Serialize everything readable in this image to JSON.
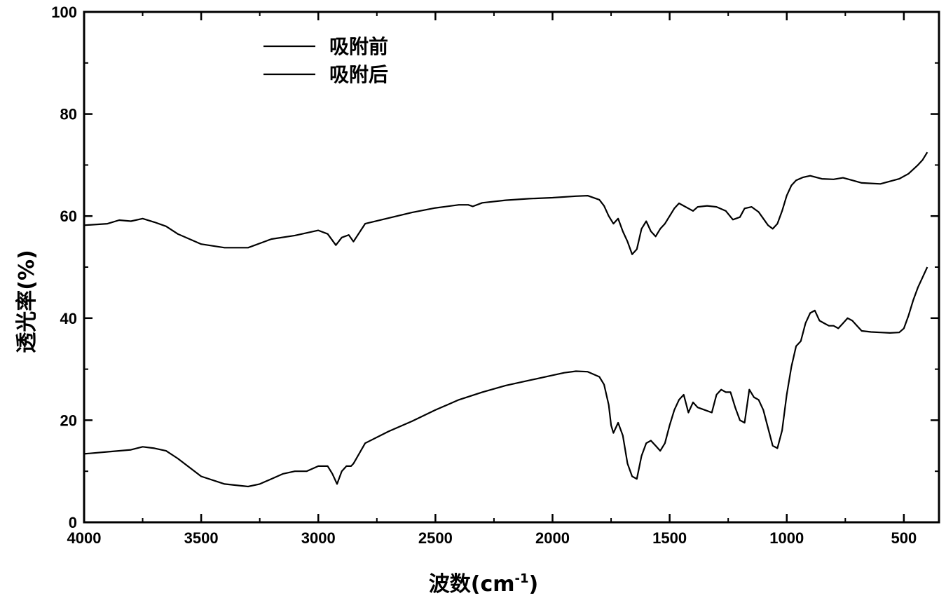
{
  "chart_data": {
    "type": "line",
    "xlabel": "波数(cm-1)",
    "xlabel_main": "波数(cm",
    "xlabel_sup": "-1",
    "xlabel_close": ")",
    "ylabel": "透光率(%)",
    "xlim": [
      4000,
      350
    ],
    "ylim": [
      0,
      100
    ],
    "x_reversed": true,
    "x_ticks": [
      4000,
      3500,
      3000,
      2500,
      2000,
      1500,
      1000,
      500
    ],
    "x_tick_labels": [
      "4000",
      "3500",
      "3000",
      "2500",
      "2000",
      "1500",
      "1000",
      "500"
    ],
    "y_ticks": [
      0,
      20,
      40,
      60,
      80,
      100
    ],
    "y_tick_labels": [
      "0",
      "20",
      "40",
      "60",
      "80",
      "100"
    ],
    "grid": false,
    "legend_position": "top-left",
    "series": [
      {
        "name": "吸附前",
        "color": "#000000",
        "x": [
          4000,
          3900,
          3850,
          3800,
          3750,
          3700,
          3650,
          3600,
          3500,
          3400,
          3300,
          3200,
          3100,
          3000,
          2960,
          2925,
          2900,
          2870,
          2850,
          2800,
          2700,
          2600,
          2500,
          2400,
          2360,
          2340,
          2300,
          2200,
          2100,
          2000,
          1900,
          1850,
          1800,
          1780,
          1760,
          1740,
          1720,
          1700,
          1680,
          1660,
          1640,
          1620,
          1600,
          1580,
          1560,
          1540,
          1520,
          1500,
          1480,
          1460,
          1440,
          1420,
          1400,
          1380,
          1340,
          1300,
          1260,
          1230,
          1200,
          1180,
          1150,
          1120,
          1100,
          1080,
          1060,
          1040,
          1020,
          1000,
          980,
          960,
          930,
          900,
          850,
          800,
          760,
          720,
          680,
          640,
          600,
          560,
          520,
          480,
          440,
          420,
          400
        ],
        "y": [
          58.2,
          58.5,
          59.2,
          59,
          59.5,
          58.8,
          58,
          56.5,
          54.5,
          53.8,
          53.8,
          55.5,
          56.2,
          57.2,
          56.5,
          54.3,
          55.8,
          56.3,
          55,
          58.5,
          59.6,
          60.7,
          61.6,
          62.2,
          62.2,
          61.9,
          62.6,
          63.1,
          63.4,
          63.6,
          63.9,
          64,
          63.2,
          62,
          60,
          58.5,
          59.5,
          57,
          55,
          52.5,
          53.5,
          57.5,
          59,
          57,
          56,
          57.5,
          58.5,
          60,
          61.5,
          62.5,
          62,
          61.5,
          61,
          61.8,
          62,
          61.8,
          61,
          59.3,
          59.8,
          61.5,
          61.8,
          60.8,
          59.5,
          58.2,
          57.5,
          58.5,
          61,
          64,
          66,
          67,
          67.6,
          67.9,
          67.3,
          67.2,
          67.5,
          67,
          66.5,
          66.4,
          66.3,
          66.8,
          67.3,
          68.3,
          70,
          71,
          72.5
        ]
      },
      {
        "name": "吸附后",
        "color": "#000000",
        "x": [
          4000,
          3900,
          3800,
          3750,
          3700,
          3650,
          3600,
          3500,
          3400,
          3300,
          3250,
          3200,
          3150,
          3100,
          3050,
          3000,
          2960,
          2940,
          2920,
          2900,
          2880,
          2860,
          2850,
          2800,
          2700,
          2600,
          2500,
          2400,
          2300,
          2200,
          2100,
          2000,
          1950,
          1900,
          1850,
          1800,
          1780,
          1760,
          1750,
          1740,
          1720,
          1700,
          1680,
          1660,
          1640,
          1620,
          1600,
          1580,
          1560,
          1540,
          1520,
          1500,
          1480,
          1460,
          1440,
          1420,
          1400,
          1380,
          1350,
          1320,
          1300,
          1280,
          1260,
          1240,
          1220,
          1200,
          1180,
          1160,
          1140,
          1120,
          1100,
          1080,
          1060,
          1040,
          1020,
          1000,
          980,
          960,
          940,
          920,
          900,
          880,
          860,
          840,
          820,
          800,
          780,
          760,
          740,
          720,
          700,
          680,
          640,
          600,
          560,
          520,
          500,
          480,
          460,
          440,
          420,
          400
        ],
        "y": [
          13.4,
          13.8,
          14.2,
          14.8,
          14.5,
          14,
          12.5,
          9,
          7.5,
          7,
          7.5,
          8.5,
          9.5,
          10,
          10,
          11,
          11,
          9.5,
          7.5,
          10,
          11,
          11,
          11.5,
          15.5,
          17.8,
          19.8,
          22,
          24,
          25.5,
          26.8,
          27.8,
          28.8,
          29.3,
          29.6,
          29.5,
          28.5,
          27,
          23,
          19,
          17.5,
          19.5,
          17,
          11.5,
          9,
          8.5,
          13,
          15.5,
          16,
          15,
          14,
          15.5,
          19,
          22,
          24,
          25,
          21.5,
          23.5,
          22.5,
          22,
          21.5,
          25,
          26,
          25.5,
          25.5,
          22.5,
          20,
          19.5,
          26,
          24.5,
          24,
          22,
          18.5,
          15,
          14.5,
          18,
          25,
          30.5,
          34.5,
          35.5,
          39,
          41,
          41.5,
          39.5,
          39,
          38.5,
          38.5,
          38,
          39,
          40,
          39.5,
          38.5,
          37.5,
          37.3,
          37.2,
          37.1,
          37.2,
          38,
          40.5,
          43.5,
          46,
          48,
          50
        ]
      }
    ]
  }
}
